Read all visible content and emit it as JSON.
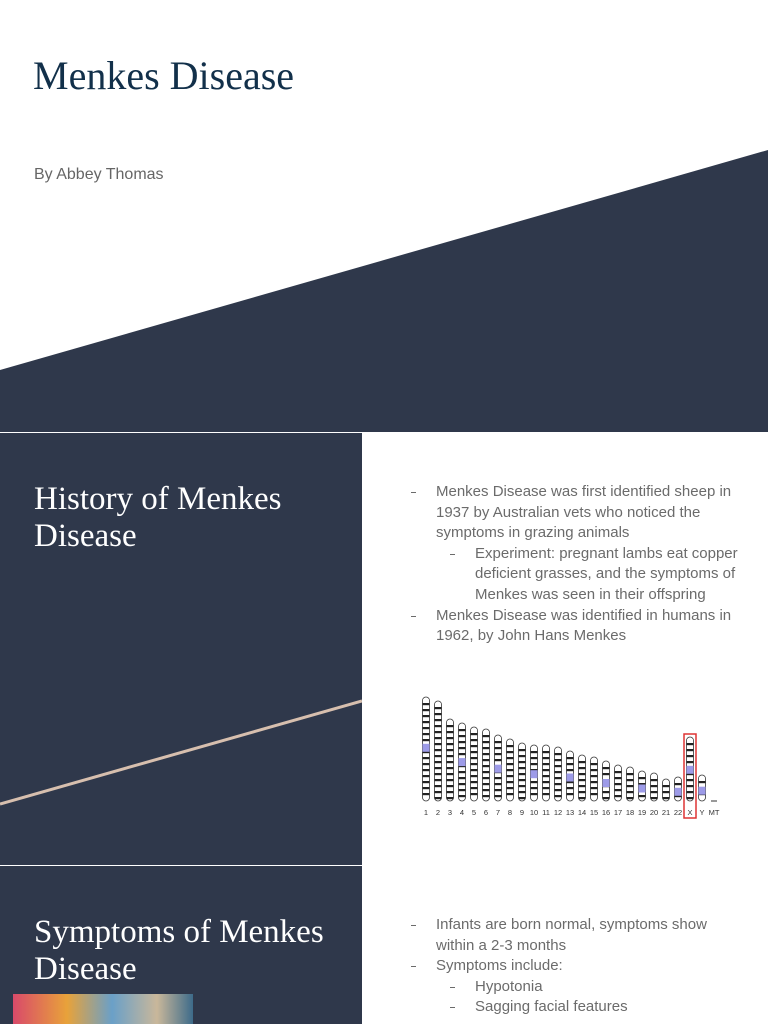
{
  "slides": [
    {
      "title": "Menkes Disease",
      "subtitle": "By Abbey Thomas"
    },
    {
      "title": "History of Menkes Disease",
      "bullets": [
        {
          "text": "Menkes Disease was first identified sheep in 1937 by Australian vets who noticed the symptoms in grazing animals",
          "sub": [
            "Experiment: pregnant lambs eat copper deficient grasses, and the symptoms of Menkes was seen in their offspring"
          ]
        },
        {
          "text": "Menkes Disease was identified in humans in 1962, by John Hans Menkes",
          "sub": []
        }
      ],
      "figure_labels": [
        "1",
        "2",
        "3",
        "4",
        "5",
        "6",
        "7",
        "8",
        "9",
        "10",
        "11",
        "12",
        "13",
        "14",
        "15",
        "16",
        "17",
        "18",
        "19",
        "20",
        "21",
        "22",
        "X",
        "Y",
        "MT"
      ]
    },
    {
      "title": "Symptoms of Menkes Disease",
      "bullets": [
        {
          "text": "Infants are born normal, symptoms show within a 2-3 months",
          "sub": []
        },
        {
          "text": "Symptoms include:",
          "sub": [
            "Hypotonia",
            "Sagging facial features"
          ]
        }
      ]
    }
  ]
}
